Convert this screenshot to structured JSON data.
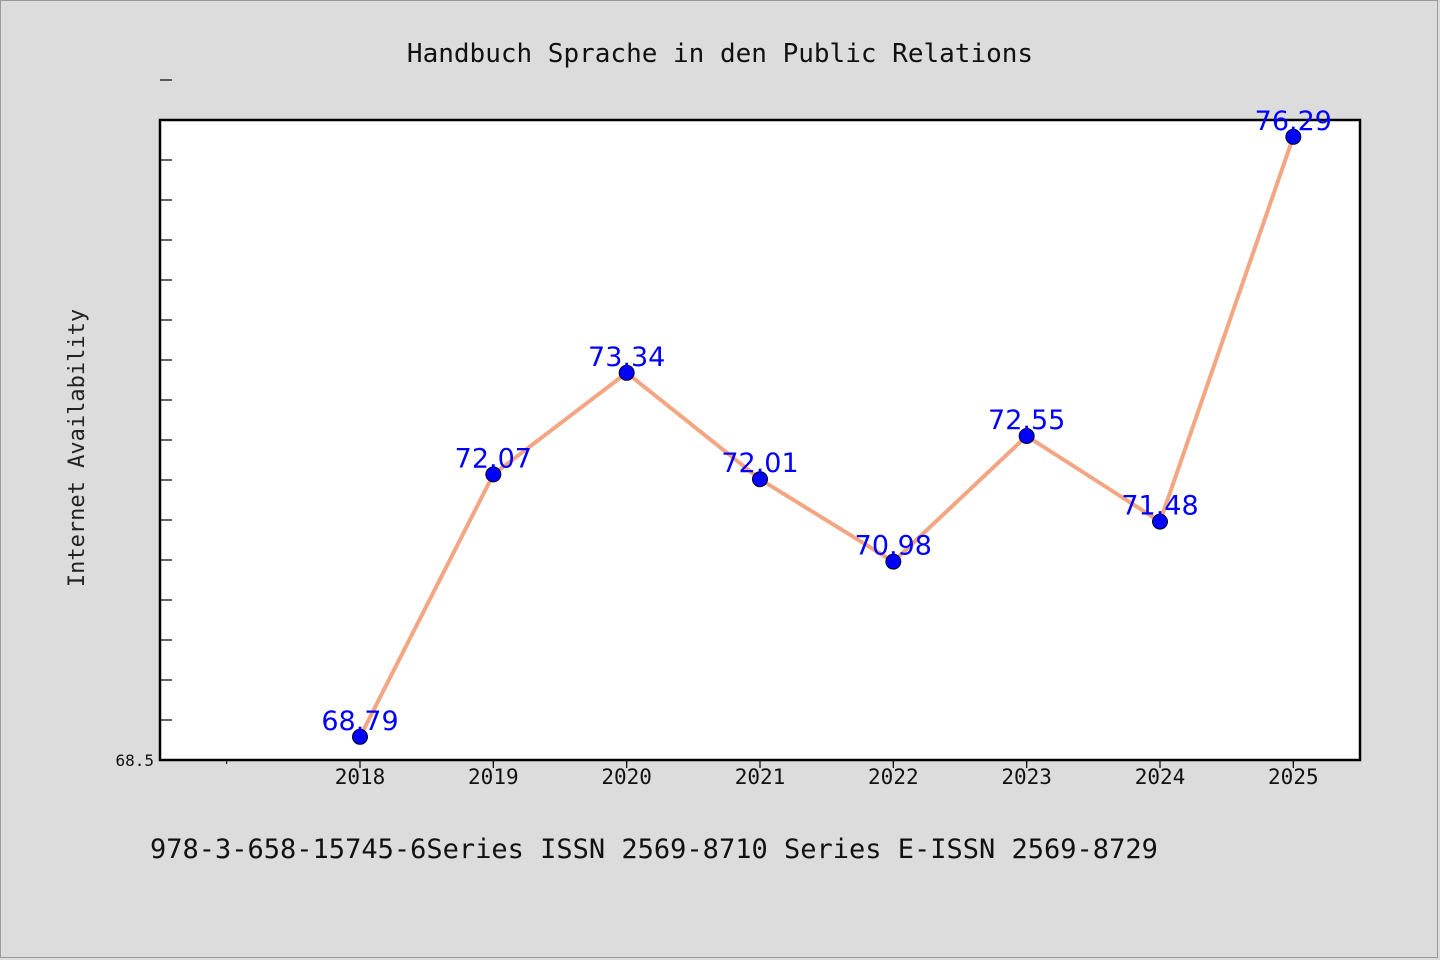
{
  "chart_data": {
    "type": "line",
    "title": "Handbuch Sprache in den Public Relations",
    "xlabel": "",
    "ylabel": "Internet Availability",
    "categories": [
      "2018",
      "2019",
      "2020",
      "2021",
      "2022",
      "2023",
      "2024",
      "2025"
    ],
    "series": [
      {
        "values": [
          68.79,
          72.07,
          73.34,
          72.01,
          70.98,
          72.55,
          71.48,
          76.29
        ],
        "data_labels": [
          "68.79",
          "72.07",
          "73.34",
          "72.01",
          "70.98",
          "72.55",
          "71.48",
          "76.29"
        ]
      }
    ],
    "ylim": [
      68.5,
      76.5
    ],
    "y_tick_labels": [
      "68.5"
    ],
    "x_range": [
      2016.5,
      2025.5
    ],
    "grid": false,
    "legend": "none",
    "colors": {
      "line": "#f4a582",
      "marker": "#0000ff",
      "data_label": "#0000ff",
      "plot_background": "#ffffff",
      "page_background": "#dcdcdc"
    }
  },
  "footer": {
    "caption": "978-3-658-15745-6Series ISSN 2569-8710 Series E-ISSN 2569-8729"
  }
}
